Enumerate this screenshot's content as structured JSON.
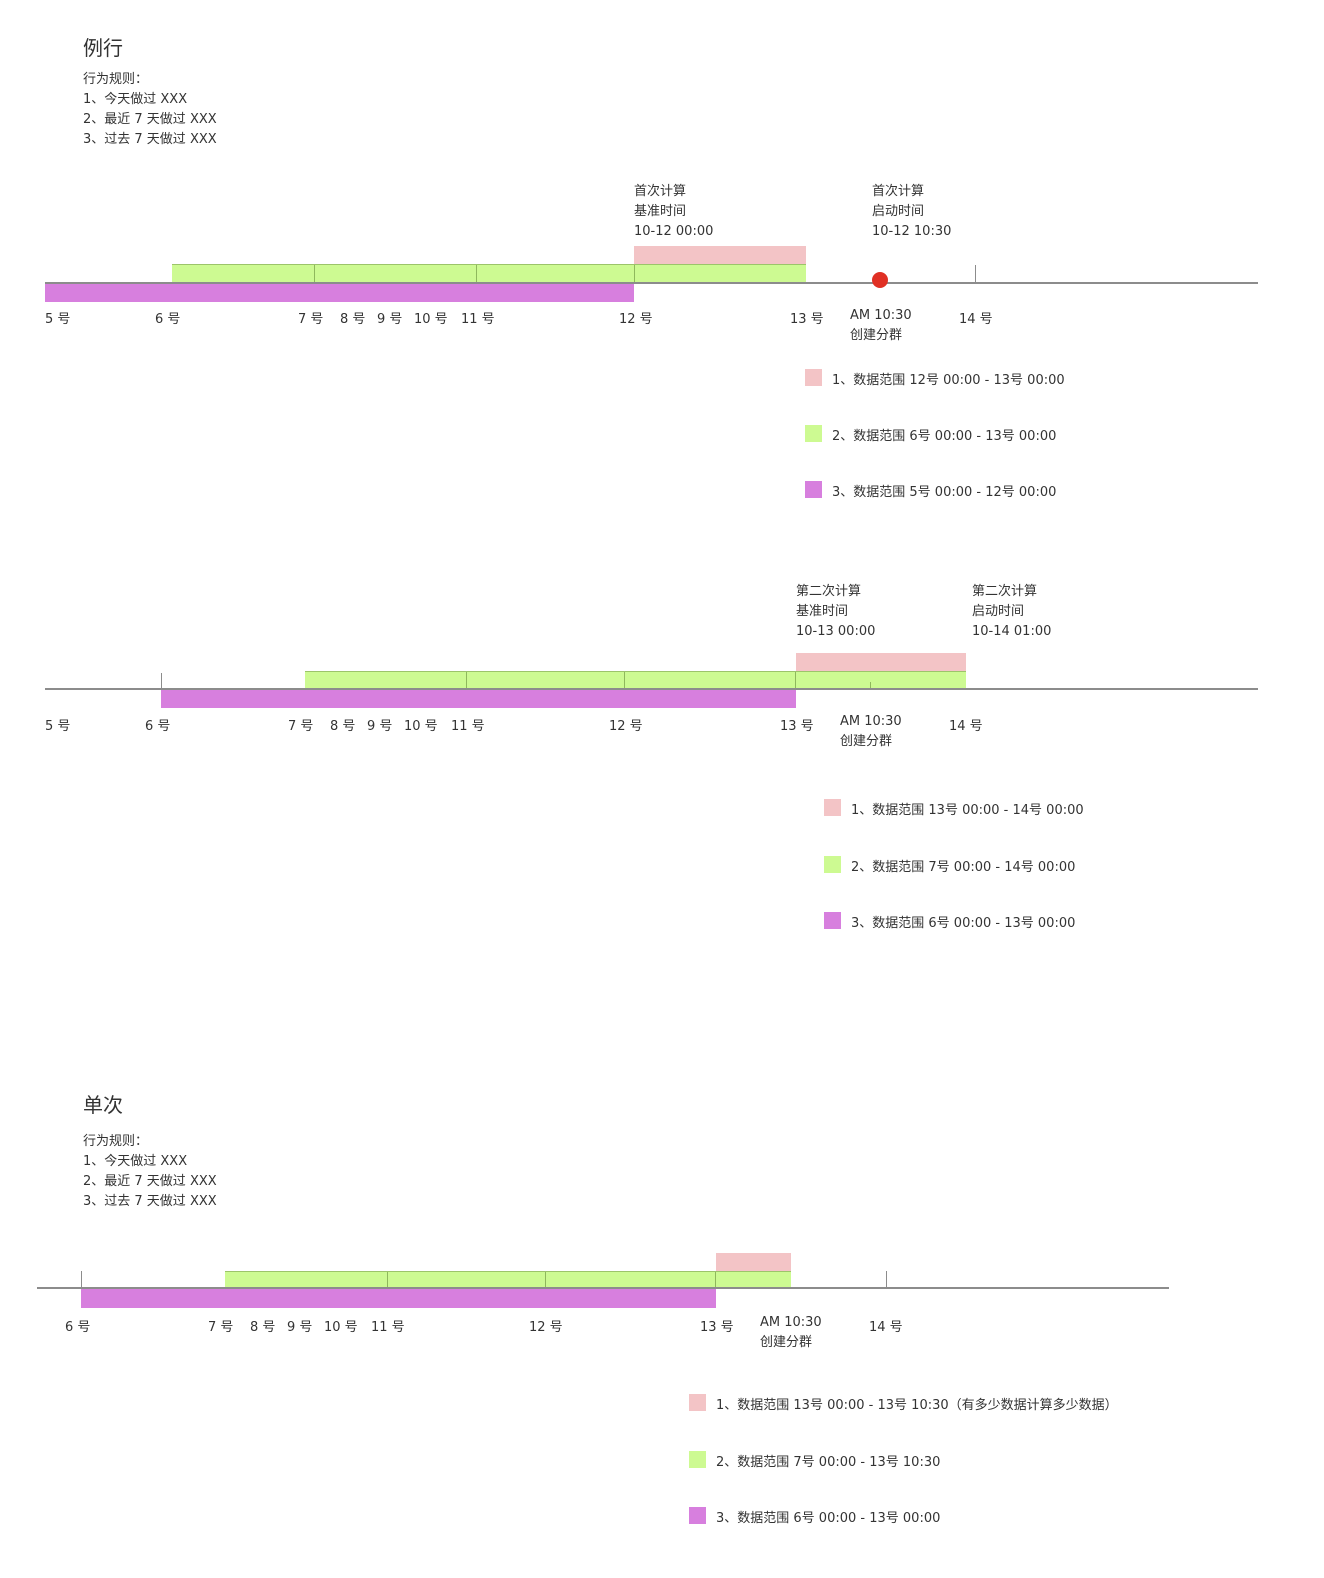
{
  "colors": {
    "pink": "#f3c4c6",
    "green": "#cdfa92",
    "purple": "#d77fde",
    "dot": "#e03024",
    "axis": "#8c8c8c"
  },
  "routine": {
    "title": "例行",
    "rules": [
      "行为规则：",
      "1、今天做过 XXX",
      "2、最近 7 天做过 XXX",
      "3、过去 7 天做过 XXX"
    ],
    "d1": {
      "ticks": [
        "5 号",
        "6 号",
        "7 号",
        "8 号",
        "9 号",
        "10 号",
        "11 号",
        "12 号",
        "13 号",
        "14 号"
      ],
      "create": [
        "AM 10:30",
        "创建分群"
      ],
      "ann_left": [
        "首次计算",
        "基准时间",
        "10-12 00:00"
      ],
      "ann_right": [
        "首次计算",
        "启动时间",
        "10-12 10:30"
      ],
      "legend": [
        "1、数据范围 12号 00:00 - 13号 00:00",
        "2、数据范围 6号 00:00 - 13号 00:00",
        "3、数据范围 5号 00:00 - 12号 00:00"
      ]
    },
    "d2": {
      "ticks": [
        "5 号",
        "6 号",
        "7 号",
        "8 号",
        "9 号",
        "10 号",
        "11 号",
        "12 号",
        "13 号",
        "14 号"
      ],
      "create": [
        "AM 10:30",
        "创建分群"
      ],
      "ann_left": [
        "第二次计算",
        "基准时间",
        "10-13 00:00"
      ],
      "ann_right": [
        "第二次计算",
        "启动时间",
        "10-14 01:00"
      ],
      "legend": [
        "1、数据范围 13号 00:00 - 14号 00:00",
        "2、数据范围 7号 00:00 - 14号 00:00",
        "3、数据范围 6号 00:00 - 13号 00:00"
      ]
    }
  },
  "single": {
    "title": "单次",
    "rules": [
      "行为规则：",
      "1、今天做过 XXX",
      "2、最近 7 天做过 XXX",
      "3、过去 7 天做过 XXX"
    ],
    "d3": {
      "ticks": [
        "6 号",
        "7 号",
        "8 号",
        "9 号",
        "10 号",
        "11 号",
        "12 号",
        "13 号",
        "14 号"
      ],
      "create": [
        "AM 10:30",
        "创建分群"
      ],
      "legend": [
        "1、数据范围 13号 00:00 - 13号 10:30（有多少数据计算多少数据）",
        "2、数据范围 7号 00:00 - 13号 10:30",
        "3、数据范围 6号 00:00 - 13号 00:00"
      ]
    }
  }
}
